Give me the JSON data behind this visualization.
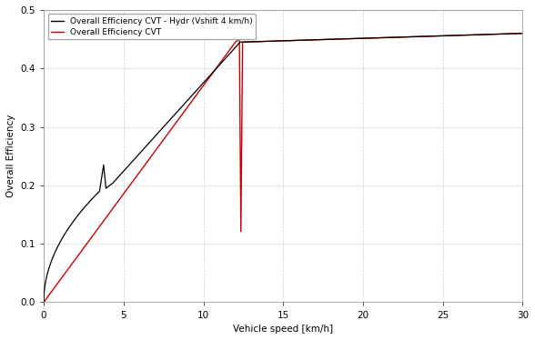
{
  "xlabel": "Vehicle speed [km/h]",
  "ylabel": "Overall Efficiency",
  "xlim": [
    0,
    30
  ],
  "ylim": [
    0.0,
    0.5
  ],
  "yticks": [
    0.0,
    0.1,
    0.2,
    0.3,
    0.4,
    0.5
  ],
  "xticks": [
    0,
    5,
    10,
    15,
    20,
    25,
    30
  ],
  "legend_labels": [
    "Overall Efficiency CVT - Hydr (Vshift 4 km/h)",
    "Overall Efficiency CVT"
  ],
  "line_black_color": "#000000",
  "line_red_color": "#cc0000",
  "background_color": "#ffffff",
  "grid_color": "#cccccc",
  "grid_linestyle": "--"
}
